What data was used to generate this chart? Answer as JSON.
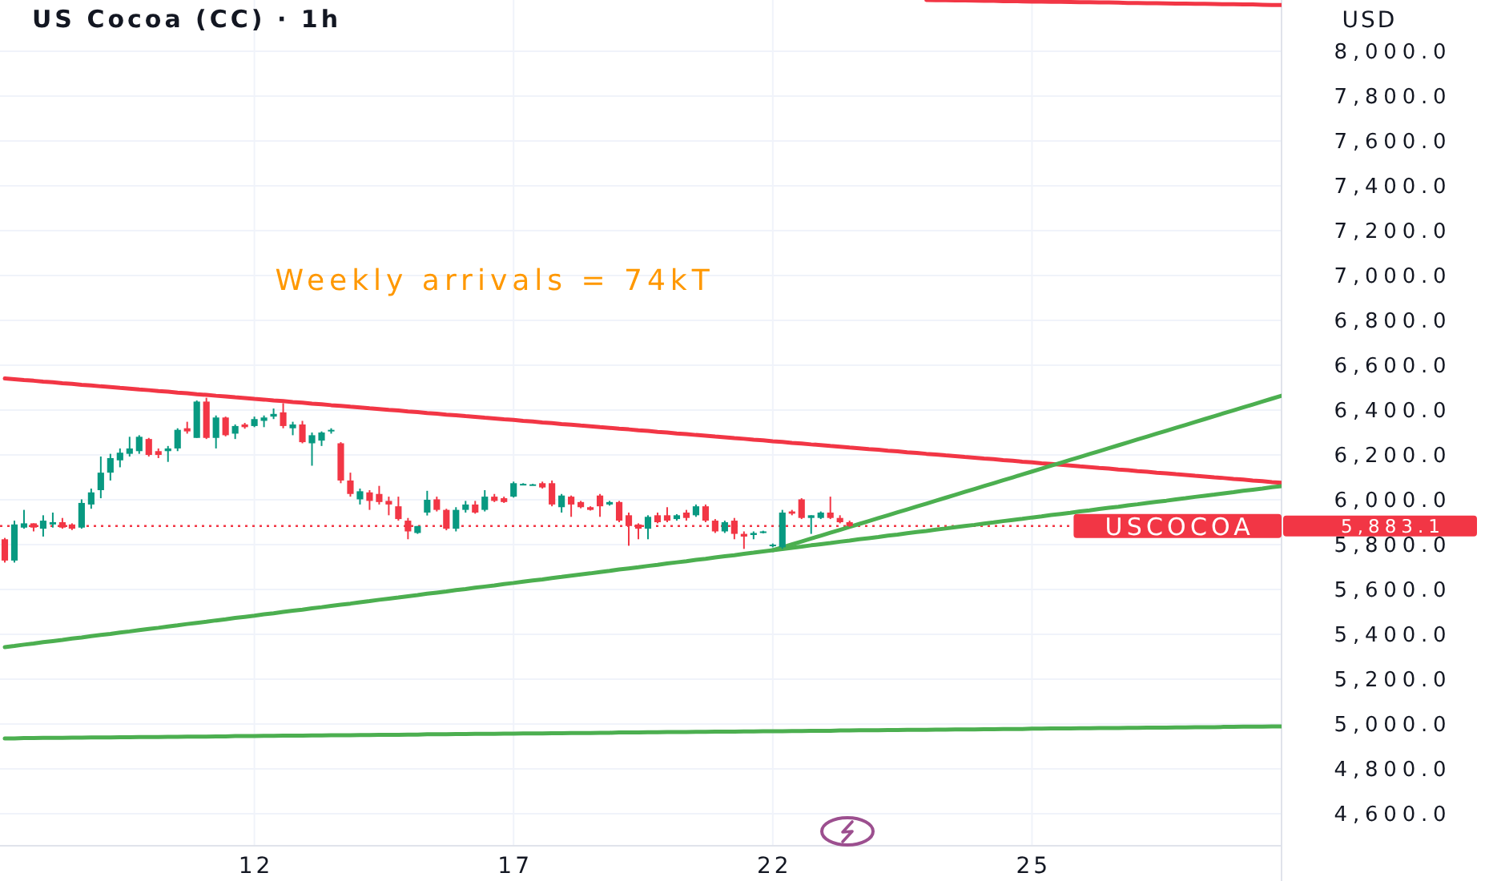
{
  "chart_data": {
    "type": "candlestick",
    "title": "US Cocoa (CC) · 1h",
    "ylabel": "USD",
    "categories": [
      null,
      null,
      null,
      null,
      null,
      null,
      null,
      null,
      null,
      null,
      null,
      null,
      null,
      null,
      null,
      null,
      null,
      null,
      null,
      null,
      null,
      null,
      null,
      null,
      null,
      null,
      "12",
      null,
      null,
      null,
      null,
      null,
      null,
      null,
      null,
      null,
      null,
      null,
      null,
      null,
      null,
      null,
      null,
      null,
      null,
      null,
      null,
      null,
      null,
      null,
      null,
      null,
      null,
      "17",
      null,
      null,
      null,
      null,
      null,
      null,
      null,
      null,
      null,
      null,
      null,
      null,
      null,
      null,
      null,
      null,
      null,
      null,
      null,
      null,
      null,
      null,
      null,
      null,
      null,
      null,
      "22",
      null,
      null,
      null,
      null,
      null,
      null,
      null,
      null,
      null,
      null,
      null,
      null,
      null,
      null,
      null,
      null,
      null,
      null,
      null,
      null,
      null,
      null,
      null,
      null,
      null,
      null,
      "25",
      null,
      null,
      null,
      null,
      null,
      null,
      null,
      null,
      null,
      null,
      null,
      null,
      null,
      null,
      null,
      null,
      null,
      null,
      null,
      null,
      null,
      null,
      null,
      null,
      null,
      null
    ],
    "ohlc": [
      [
        5824,
        5830,
        5720,
        5729
      ],
      [
        5729,
        5907,
        5720,
        5890
      ],
      [
        5876,
        5955,
        5871,
        5895
      ],
      [
        5895,
        5895,
        5859,
        5876
      ],
      [
        5871,
        5931,
        5836,
        5907
      ],
      [
        5890,
        5943,
        5876,
        5900
      ],
      [
        5900,
        5919,
        5871,
        5876
      ],
      [
        5890,
        5895,
        5865,
        5871
      ],
      [
        5876,
        6002,
        5871,
        5986
      ],
      [
        5979,
        6050,
        5960,
        6033
      ],
      [
        6043,
        6193,
        6007,
        6121
      ],
      [
        6121,
        6205,
        6086,
        6186
      ],
      [
        6176,
        6229,
        6145,
        6210
      ],
      [
        6205,
        6281,
        6193,
        6229
      ],
      [
        6217,
        6288,
        6205,
        6281
      ],
      [
        6271,
        6276,
        6193,
        6200
      ],
      [
        6217,
        6229,
        6186,
        6200
      ],
      [
        6217,
        6240,
        6169,
        6229
      ],
      [
        6229,
        6319,
        6217,
        6312
      ],
      [
        6319,
        6348,
        6295,
        6305
      ],
      [
        6276,
        6443,
        6276,
        6438
      ],
      [
        6438,
        6455,
        6271,
        6276
      ],
      [
        6276,
        6376,
        6229,
        6367
      ],
      [
        6367,
        6371,
        6283,
        6288
      ],
      [
        6295,
        6336,
        6271,
        6329
      ],
      [
        6336,
        6343,
        6317,
        6324
      ],
      [
        6329,
        6371,
        6324,
        6360
      ],
      [
        6352,
        6376,
        6324,
        6367
      ],
      [
        6371,
        6407,
        6360,
        6383
      ],
      [
        6390,
        6431,
        6319,
        6329
      ],
      [
        6319,
        6348,
        6288,
        6336
      ],
      [
        6336,
        6352,
        6252,
        6257
      ],
      [
        6252,
        6300,
        6152,
        6288
      ],
      [
        6264,
        6305,
        6240,
        6300
      ],
      [
        6305,
        6319,
        6295,
        6312
      ],
      [
        6252,
        6257,
        6074,
        6086
      ],
      [
        6086,
        6121,
        6014,
        6026
      ],
      [
        6002,
        6050,
        5979,
        6038
      ],
      [
        6033,
        6043,
        5955,
        5995
      ],
      [
        6026,
        6062,
        5979,
        5990
      ],
      [
        5995,
        6014,
        5931,
        5979
      ],
      [
        5971,
        6014,
        5907,
        5914
      ],
      [
        5907,
        5919,
        5824,
        5859
      ],
      [
        5852,
        5883,
        5848,
        5883
      ],
      [
        5943,
        6040,
        5930,
        6000
      ],
      [
        6002,
        6014,
        5948,
        5955
      ],
      [
        5955,
        5960,
        5864,
        5871
      ],
      [
        5871,
        5967,
        5859,
        5955
      ],
      [
        5955,
        5995,
        5943,
        5979
      ],
      [
        5979,
        5995,
        5938,
        5943
      ],
      [
        5955,
        6043,
        5948,
        6014
      ],
      [
        6014,
        6026,
        5990,
        5995
      ],
      [
        6007,
        6014,
        5986,
        5990
      ],
      [
        6014,
        6081,
        6010,
        6074
      ],
      [
        6069,
        6074,
        6067,
        6071
      ],
      [
        6067,
        6071,
        6064,
        6069
      ],
      [
        6074,
        6081,
        6050,
        6055
      ],
      [
        6074,
        6086,
        5971,
        5979
      ],
      [
        5967,
        6026,
        5943,
        6019
      ],
      [
        6014,
        6019,
        5924,
        5979
      ],
      [
        5990,
        5995,
        5962,
        5967
      ],
      [
        5967,
        5971,
        5952,
        5955
      ],
      [
        6019,
        6026,
        5924,
        5971
      ],
      [
        5979,
        5995,
        5974,
        5990
      ],
      [
        5990,
        5995,
        5900,
        5907
      ],
      [
        5931,
        5943,
        5795,
        5883
      ],
      [
        5890,
        5895,
        5824,
        5871
      ],
      [
        5871,
        5931,
        5824,
        5924
      ],
      [
        5931,
        5943,
        5895,
        5900
      ],
      [
        5931,
        5967,
        5900,
        5907
      ],
      [
        5914,
        5936,
        5907,
        5931
      ],
      [
        5943,
        5955,
        5907,
        5919
      ],
      [
        5931,
        5979,
        5924,
        5971
      ],
      [
        5971,
        5979,
        5900,
        5907
      ],
      [
        5907,
        5914,
        5852,
        5859
      ],
      [
        5859,
        5907,
        5852,
        5900
      ],
      [
        5907,
        5919,
        5824,
        5848
      ],
      [
        5848,
        5859,
        5781,
        5836
      ],
      [
        5843,
        5859,
        5824,
        5852
      ],
      [
        5855,
        5862,
        5850,
        5859
      ],
      [
        5795,
        5805,
        5788,
        5800
      ],
      [
        5788,
        5955,
        5781,
        5943
      ],
      [
        5948,
        5955,
        5931,
        5938
      ],
      [
        6002,
        6007,
        5914,
        5919
      ],
      [
        5919,
        5931,
        5848,
        5931
      ],
      [
        5919,
        5948,
        5914,
        5943
      ],
      [
        5943,
        6014,
        5914,
        5919
      ],
      [
        5919,
        5931,
        5895,
        5900
      ],
      [
        5900,
        5907,
        5879,
        5883.1
      ],
      null,
      null,
      null,
      null,
      null,
      null,
      null,
      null,
      null,
      null,
      null,
      null,
      null,
      null,
      null,
      null,
      null,
      null,
      null,
      null,
      null,
      null,
      null,
      null,
      null,
      null,
      null,
      null,
      null,
      null,
      null,
      null,
      null,
      null,
      null,
      null,
      null,
      null,
      null,
      null,
      null,
      null,
      null,
      null,
      null
    ],
    "colors": [
      "#f23645",
      "#089981",
      "#089981",
      "#f23645",
      "#089981",
      "#089981",
      "#f23645",
      "#f23645",
      "#089981",
      "#089981",
      "#089981",
      "#089981",
      "#089981",
      "#089981",
      "#089981",
      "#f23645",
      "#f23645",
      "#089981",
      "#089981",
      "#f23645",
      "#089981",
      "#f23645",
      "#089981",
      "#f23645",
      "#089981",
      "#f23645",
      "#089981",
      "#089981",
      "#089981",
      "#f23645",
      "#089981",
      "#f23645",
      "#089981",
      "#089981",
      "#089981",
      "#f23645",
      "#f23645",
      "#089981",
      "#f23645",
      "#f23645",
      "#f23645",
      "#f23645",
      "#f23645",
      "#089981",
      "#089981",
      "#f23645",
      "#f23645",
      "#089981",
      "#089981",
      "#f23645",
      "#089981",
      "#f23645",
      "#f23645",
      "#089981",
      "#089981",
      "#089981",
      "#f23645",
      "#f23645",
      "#089981",
      "#f23645",
      "#f23645",
      "#f23645",
      "#f23645",
      "#089981",
      "#f23645",
      "#f23645",
      "#f23645",
      "#089981",
      "#f23645",
      "#f23645",
      "#089981",
      "#f23645",
      "#089981",
      "#f23645",
      "#f23645",
      "#089981",
      "#f23645",
      "#f23645",
      "#089981",
      "#089981",
      "#089981",
      "#089981",
      "#f23645",
      "#f23645",
      "#089981",
      "#089981",
      "#f23645",
      "#f23645",
      "#f23645",
      null,
      null,
      null,
      null,
      null,
      null,
      null,
      null,
      null,
      null,
      null,
      null,
      null,
      null,
      null,
      null,
      null,
      null,
      null,
      null,
      null,
      null,
      null,
      null,
      null,
      null,
      null,
      null,
      null,
      null,
      null,
      null,
      null,
      null,
      null,
      null,
      null,
      null,
      null,
      null,
      null,
      null,
      null,
      null,
      null
    ],
    "ylim": [
      4457,
      8229
    ],
    "yticks": [
      {
        "value": 4600,
        "label": "4,600.0"
      },
      {
        "value": 4800,
        "label": "4,800.0"
      },
      {
        "value": 5000,
        "label": "5,000.0"
      },
      {
        "value": 5200,
        "label": "5,200.0"
      },
      {
        "value": 5400,
        "label": "5,400.0"
      },
      {
        "value": 5600,
        "label": "5,600.0"
      },
      {
        "value": 5800,
        "label": "5,800.0"
      },
      {
        "value": 5883.1,
        "label": "5,883.1"
      },
      {
        "value": 6000,
        "label": "6,000.0"
      },
      {
        "value": 6200,
        "label": "6,200.0"
      },
      {
        "value": 6400,
        "label": "6,400.0"
      },
      {
        "value": 6600,
        "label": "6,600.0"
      },
      {
        "value": 6800,
        "label": "6,800.0"
      },
      {
        "value": 7000,
        "label": "7,000.0"
      },
      {
        "value": 7200,
        "label": "7,200.0"
      },
      {
        "value": 7400,
        "label": "7,400.0"
      },
      {
        "value": 7600,
        "label": "7,600.0"
      },
      {
        "value": 7800,
        "label": "7,800.0"
      },
      {
        "value": 8000,
        "label": "8,000.0"
      }
    ],
    "grid": true,
    "series": [
      {
        "type": "line",
        "color": "#f23645",
        "values": [
          6541,
          6538,
          6534,
          6531,
          6527,
          6524,
          6520,
          6517,
          6513,
          6510,
          6506,
          6503,
          6499,
          6496,
          6492,
          6489,
          6485,
          6482,
          6478,
          6475,
          6471,
          6468,
          6464,
          6461,
          6457,
          6454,
          6450,
          6447,
          6443,
          6440,
          6436,
          6433,
          6429,
          6426,
          6422,
          6419,
          6415,
          6412,
          6408,
          6405,
          6401,
          6398,
          6394,
          6391,
          6387,
          6384,
          6380,
          6377,
          6373,
          6370,
          6366,
          6363,
          6359,
          6356,
          6352,
          6349,
          6345,
          6342,
          6338,
          6335,
          6331,
          6328,
          6324,
          6321,
          6317,
          6314,
          6310,
          6307,
          6303,
          6300,
          6296,
          6293,
          6289,
          6286,
          6282,
          6279,
          6275,
          6272,
          6268,
          6265,
          6261,
          6258,
          6254,
          6251,
          6247,
          6244,
          6240,
          6237,
          6233,
          6230,
          6226,
          6223,
          6219,
          6216,
          6212,
          6209,
          6205,
          6202,
          6198,
          6195,
          6191,
          6188,
          6184,
          6181,
          6177,
          6174,
          6170,
          6167,
          6163,
          6160,
          6156,
          6153,
          6149,
          6146,
          6142,
          6139,
          6135,
          6132,
          6128,
          6125,
          6121,
          6118,
          6114,
          6111,
          6107,
          6104,
          6100,
          6097,
          6093,
          6090,
          6086,
          6083,
          6079,
          6076
        ]
      },
      {
        "type": "line",
        "color": "#f23645",
        "values": [
          null,
          null,
          null,
          null,
          null,
          null,
          null,
          null,
          null,
          null,
          null,
          null,
          null,
          null,
          null,
          null,
          null,
          null,
          null,
          null,
          null,
          null,
          null,
          null,
          null,
          null,
          null,
          null,
          null,
          null,
          null,
          null,
          null,
          null,
          null,
          null,
          null,
          null,
          null,
          null,
          null,
          null,
          null,
          null,
          null,
          null,
          null,
          null,
          null,
          null,
          null,
          null,
          null,
          null,
          null,
          null,
          null,
          null,
          null,
          null,
          null,
          null,
          null,
          null,
          null,
          null,
          null,
          null,
          null,
          null,
          null,
          null,
          null,
          null,
          null,
          null,
          null,
          null,
          null,
          null,
          null,
          null,
          null,
          null,
          null,
          null,
          null,
          null,
          null,
          null,
          null,
          null,
          null,
          null,
          null,
          null,
          8229,
          8228,
          8228,
          8227,
          8227,
          8226,
          8225,
          8225,
          8224,
          8224,
          8223,
          8222,
          8222,
          8221,
          8221,
          8220,
          8219,
          8219,
          8218,
          8218,
          8217,
          8216,
          8216,
          8215,
          8215,
          8214,
          8213,
          8213,
          8212,
          8212,
          8211,
          8210,
          8210,
          8209,
          8209,
          8208,
          8207,
          8207
        ]
      },
      {
        "type": "line",
        "color": "#4caf50",
        "values": [
          5343,
          5348,
          5354,
          5359,
          5365,
          5370,
          5375,
          5381,
          5386,
          5392,
          5397,
          5402,
          5408,
          5413,
          5419,
          5424,
          5429,
          5435,
          5440,
          5446,
          5451,
          5456,
          5462,
          5467,
          5473,
          5478,
          5483,
          5489,
          5494,
          5500,
          5505,
          5510,
          5516,
          5521,
          5527,
          5532,
          5537,
          5543,
          5548,
          5554,
          5559,
          5564,
          5570,
          5575,
          5581,
          5586,
          5591,
          5597,
          5602,
          5608,
          5613,
          5618,
          5624,
          5629,
          5635,
          5640,
          5645,
          5651,
          5656,
          5662,
          5667,
          5672,
          5678,
          5683,
          5689,
          5694,
          5699,
          5705,
          5710,
          5716,
          5721,
          5726,
          5732,
          5737,
          5743,
          5748,
          5753,
          5759,
          5764,
          5770,
          5775,
          5780,
          5786,
          5791,
          5797,
          5802,
          5807,
          5813,
          5818,
          5824,
          5829,
          5834,
          5840,
          5845,
          5851,
          5856,
          5861,
          5867,
          5872,
          5878,
          5883,
          5888,
          5894,
          5899,
          5905,
          5910,
          5915,
          5921,
          5926,
          5932,
          5937,
          5942,
          5948,
          5953,
          5959,
          5964,
          5969,
          5975,
          5980,
          5986,
          5991,
          5996,
          6002,
          6007,
          6013,
          6018,
          6023,
          6029,
          6034,
          6040,
          6045,
          6050,
          6056,
          6061
        ]
      },
      {
        "type": "line",
        "color": "#4caf50",
        "values": [
          null,
          null,
          null,
          null,
          null,
          null,
          null,
          null,
          null,
          null,
          null,
          null,
          null,
          null,
          null,
          null,
          null,
          null,
          null,
          null,
          null,
          null,
          null,
          null,
          null,
          null,
          null,
          null,
          null,
          null,
          null,
          null,
          null,
          null,
          null,
          null,
          null,
          null,
          null,
          null,
          null,
          null,
          null,
          null,
          null,
          null,
          null,
          null,
          null,
          null,
          null,
          null,
          null,
          null,
          null,
          null,
          null,
          null,
          null,
          null,
          null,
          null,
          null,
          null,
          null,
          null,
          null,
          null,
          null,
          null,
          null,
          null,
          null,
          null,
          null,
          null,
          null,
          null,
          null,
          null,
          5775,
          5788,
          5801,
          5814,
          5827,
          5840,
          5853,
          5866,
          5879,
          5892,
          5905,
          5918,
          5931,
          5944,
          5957,
          5970,
          5983,
          5996,
          6009,
          6022,
          6035,
          6048,
          6061,
          6074,
          6087,
          6100,
          6113,
          6126,
          6139,
          6152,
          6165,
          6178,
          6191,
          6204,
          6217,
          6230,
          6243,
          6256,
          6269,
          6282,
          6295,
          6308,
          6321,
          6334,
          6347,
          6360,
          6373,
          6386,
          6399,
          6412,
          6425,
          6438,
          6451,
          6464
        ]
      },
      {
        "type": "line",
        "color": "#4caf50",
        "values": [
          4936,
          4936,
          4937,
          4937,
          4938,
          4938,
          4938,
          4939,
          4939,
          4940,
          4940,
          4940,
          4941,
          4941,
          4942,
          4942,
          4942,
          4943,
          4943,
          4944,
          4944,
          4944,
          4945,
          4945,
          4946,
          4946,
          4946,
          4947,
          4947,
          4948,
          4948,
          4948,
          4949,
          4949,
          4950,
          4950,
          4950,
          4951,
          4951,
          4952,
          4952,
          4952,
          4953,
          4953,
          4954,
          4954,
          4954,
          4955,
          4955,
          4956,
          4956,
          4956,
          4957,
          4957,
          4958,
          4958,
          4958,
          4959,
          4959,
          4960,
          4960,
          4960,
          4961,
          4961,
          4962,
          4962,
          4962,
          4963,
          4963,
          4964,
          4964,
          4964,
          4965,
          4965,
          4966,
          4966,
          4966,
          4967,
          4967,
          4968,
          4968,
          4968,
          4969,
          4969,
          4970,
          4970,
          4970,
          4971,
          4971,
          4972,
          4972,
          4972,
          4973,
          4973,
          4974,
          4974,
          4974,
          4975,
          4975,
          4976,
          4976,
          4976,
          4977,
          4977,
          4978,
          4978,
          4978,
          4979,
          4979,
          4980,
          4980,
          4980,
          4981,
          4981,
          4982,
          4982,
          4982,
          4983,
          4983,
          4984,
          4984,
          4984,
          4985,
          4985,
          4986,
          4986,
          4986,
          4987,
          4987,
          4988,
          4988,
          4988,
          4989,
          4989
        ]
      }
    ],
    "ref_lines": [
      {
        "axis": "y",
        "value": 5883.1,
        "label": "USCOCOA",
        "color": "#f23645",
        "line_style": "dotted"
      }
    ],
    "annotations": [
      "Weekly arrivals = 74kT"
    ]
  }
}
